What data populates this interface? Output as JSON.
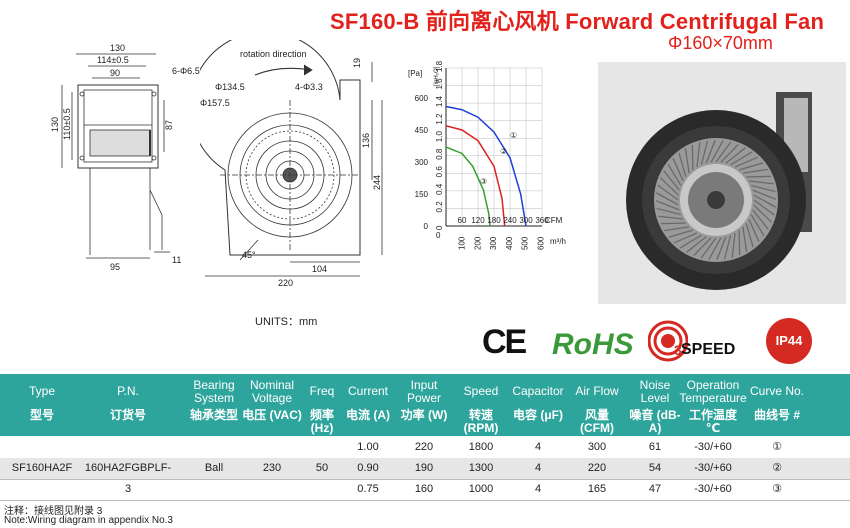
{
  "header": {
    "title": "SF160-B  前向离心风机 Forward Centrifugal Fan",
    "subtitle": "Φ160×70mm"
  },
  "drawing": {
    "left_view": {
      "dims": [
        "130",
        "114±0.5",
        "90",
        "6-Φ6.5",
        "130",
        "110±0.5",
        "87",
        "95",
        "11"
      ]
    },
    "front_view": {
      "labels": [
        "rotation  direction",
        "Φ134.5",
        "4-Φ3.3",
        "Φ157.5",
        "45°",
        "104",
        "220",
        "19",
        "136",
        "244"
      ]
    },
    "units": "UNITS：mm"
  },
  "curve_chart": {
    "pressure_unit_top": "[Pa]",
    "pressure_unit_alt": "[inH₂O]",
    "pa_ticks": [
      "600",
      "450",
      "300",
      "150",
      "0"
    ],
    "inh2o_ticks": [
      "1.8",
      "1.6",
      "1.4",
      "1.2",
      "1.0",
      "0.8",
      "0.6",
      "0.4",
      "0.2",
      "0"
    ],
    "cfm_ticks": [
      "60",
      "120",
      "180",
      "240",
      "300",
      "360"
    ],
    "cfm_label": "CFM",
    "m3h_ticks": [
      "100",
      "200",
      "300",
      "400",
      "500",
      "600"
    ],
    "m3h_label": "m³/h",
    "curve_labels": [
      "①",
      "②",
      "③"
    ],
    "colors": [
      "#1f3fd6",
      "#e02020",
      "#33a02c"
    ]
  },
  "chart_data": {
    "type": "line",
    "xlabel": "CFM",
    "ylabel": "[Pa]",
    "xlim": [
      0,
      360
    ],
    "ylim": [
      0,
      600
    ],
    "series": [
      {
        "name": "①",
        "x": [
          0,
          60,
          120,
          180,
          240,
          280,
          300
        ],
        "y": [
          560,
          545,
          510,
          440,
          320,
          150,
          0
        ]
      },
      {
        "name": "②",
        "x": [
          0,
          60,
          120,
          180,
          210,
          220
        ],
        "y": [
          470,
          450,
          400,
          280,
          130,
          0
        ]
      },
      {
        "name": "③",
        "x": [
          0,
          60,
          100,
          140,
          160,
          165
        ],
        "y": [
          370,
          340,
          280,
          170,
          60,
          0
        ]
      }
    ]
  },
  "certifications": {
    "ce": "CE",
    "rohs": "RoHS",
    "speed_count": "3",
    "speed_label": "SPEED",
    "ip": "IP44"
  },
  "table": {
    "headers": [
      {
        "en": "Type",
        "cn": "型号"
      },
      {
        "en": "P.N.",
        "cn": "订货号"
      },
      {
        "en": "Bearing System",
        "cn": "轴承类型"
      },
      {
        "en": "Nominal Voltage",
        "cn": "电压 (VAC)"
      },
      {
        "en": "Freq",
        "cn": "频率 (Hz)"
      },
      {
        "en": "Current",
        "cn": "电流 (A)"
      },
      {
        "en": "Input Power",
        "cn": "功率 (W)"
      },
      {
        "en": "Speed",
        "cn": "转速 (RPM)"
      },
      {
        "en": "Capacitor",
        "cn": "电容 (μF)"
      },
      {
        "en": "Air Flow",
        "cn": "风量 (CFM)"
      },
      {
        "en": "Noise Level",
        "cn": "噪音 (dB-A)"
      },
      {
        "en": "Operation Temperature",
        "cn": "工作温度 ℃"
      },
      {
        "en": "Curve No.",
        "cn": "曲线号 #"
      }
    ],
    "shared": {
      "type": "SF160HA2F",
      "pn": "160HA2FGBPLF-3",
      "bearing": "Ball",
      "voltage": "230",
      "freq": "50"
    },
    "rows": [
      {
        "current": "1.00",
        "power": "220",
        "speed": "1800",
        "capacitor": "4",
        "airflow": "300",
        "noise": "61",
        "temp": "-30/+60",
        "curve": "①"
      },
      {
        "current": "0.90",
        "power": "190",
        "speed": "1300",
        "capacitor": "4",
        "airflow": "220",
        "noise": "54",
        "temp": "-30/+60",
        "curve": "②"
      },
      {
        "current": "0.75",
        "power": "160",
        "speed": "1000",
        "capacitor": "4",
        "airflow": "165",
        "noise": "47",
        "temp": "-30/+60",
        "curve": "③"
      }
    ]
  },
  "notes": {
    "cn": "注释：接线图见附录 3",
    "en": "Note:Wiring diagram in appendix No.3"
  }
}
